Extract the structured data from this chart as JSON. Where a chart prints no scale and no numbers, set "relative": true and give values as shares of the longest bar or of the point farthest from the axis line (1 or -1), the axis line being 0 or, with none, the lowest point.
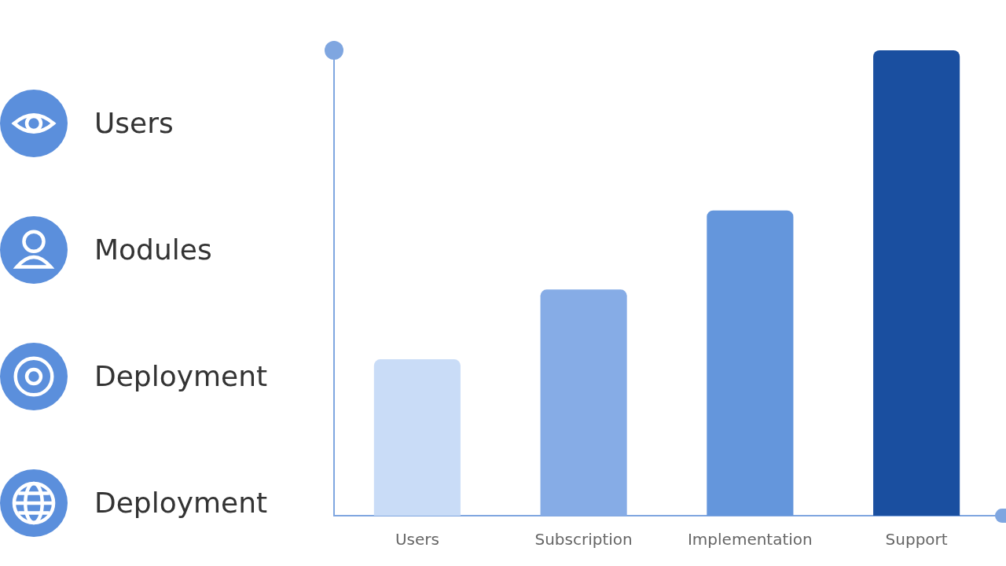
{
  "chart_data": {
    "type": "bar",
    "relative": true,
    "categories": [
      "Users",
      "Subscription",
      "Implementation",
      "Support"
    ],
    "values": [
      0.336,
      0.486,
      0.656,
      1
    ],
    "colors": [
      "#c9dcf7",
      "#86ace6",
      "#6496dc",
      "#1a4fa0"
    ],
    "grid": false,
    "annotations": [
      "Users",
      "Modules",
      "Deployment",
      "Deployment"
    ]
  }
}
